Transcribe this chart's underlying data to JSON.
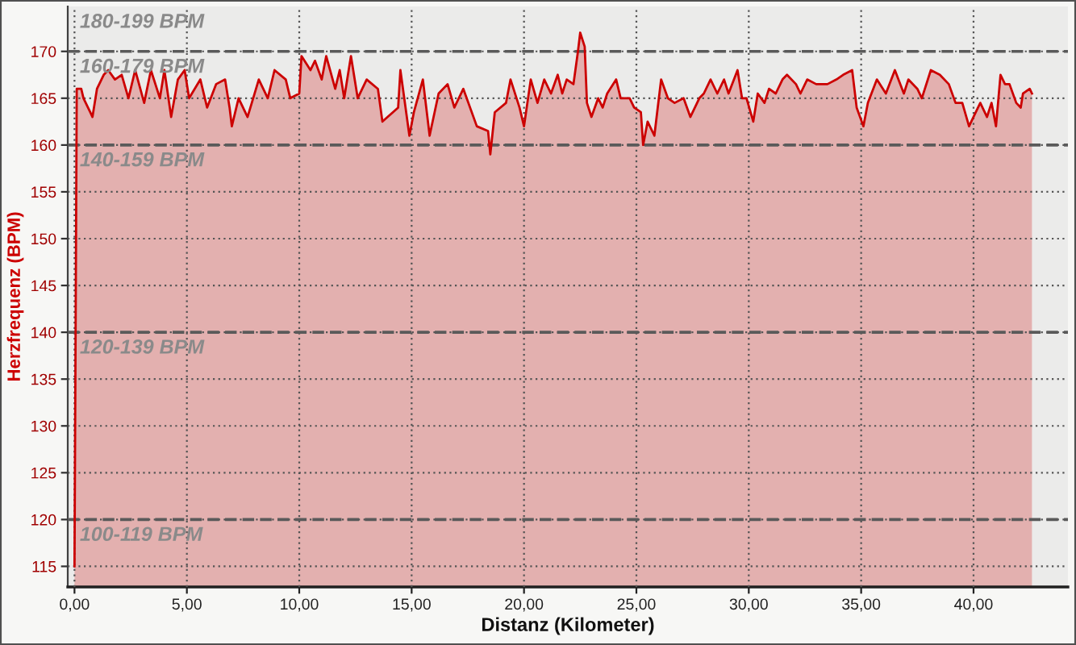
{
  "chart_data": {
    "type": "area",
    "xlabel": "Distanz (Kilometer)",
    "ylabel": "Herzfrequenz (BPM)",
    "x": [
      0.0,
      0.1,
      0.3,
      0.4,
      0.7,
      0.8,
      1.0,
      1.3,
      1.5,
      1.8,
      2.1,
      2.4,
      2.7,
      3.1,
      3.4,
      3.8,
      4.0,
      4.3,
      4.6,
      4.9,
      5.1,
      5.6,
      5.9,
      6.3,
      6.7,
      6.9,
      7.0,
      7.3,
      7.7,
      8.2,
      8.6,
      8.9,
      9.4,
      9.6,
      10.0,
      10.1,
      10.5,
      10.7,
      11.0,
      11.2,
      11.6,
      11.8,
      12.0,
      12.3,
      12.6,
      13.0,
      13.5,
      13.7,
      14.4,
      14.5,
      14.9,
      15.1,
      15.5,
      15.8,
      16.2,
      16.6,
      16.9,
      17.3,
      17.9,
      18.4,
      18.5,
      18.7,
      19.2,
      19.4,
      19.8,
      20.0,
      20.3,
      20.6,
      20.9,
      21.2,
      21.5,
      21.7,
      21.9,
      22.2,
      22.4,
      22.5,
      22.7,
      22.8,
      23.0,
      23.3,
      23.5,
      23.7,
      24.1,
      24.3,
      24.7,
      24.9,
      25.2,
      25.3,
      25.5,
      25.8,
      25.9,
      26.1,
      26.4,
      26.7,
      27.1,
      27.4,
      27.8,
      28.0,
      28.3,
      28.6,
      28.9,
      29.1,
      29.5,
      29.7,
      29.9,
      30.2,
      30.4,
      30.7,
      30.9,
      31.2,
      31.5,
      31.7,
      32.1,
      32.3,
      32.6,
      33.0,
      33.5,
      33.9,
      34.2,
      34.6,
      34.8,
      35.1,
      35.3,
      35.7,
      36.1,
      36.5,
      36.9,
      37.1,
      37.5,
      37.7,
      38.1,
      38.5,
      38.9,
      39.2,
      39.5,
      39.8,
      40.1,
      40.3,
      40.6,
      40.8,
      41.0,
      41.2,
      41.4,
      41.6,
      41.9,
      42.1,
      42.2,
      42.5,
      42.6
    ],
    "series": [
      {
        "color": "#cc0000",
        "values": [
          115,
          166,
          166,
          165,
          163.5,
          163,
          166,
          167.5,
          168,
          167,
          167.5,
          165,
          168,
          164.5,
          168,
          165,
          168,
          163,
          167,
          168,
          165,
          167,
          164,
          166.5,
          167,
          164,
          162,
          165,
          163,
          167,
          165,
          168,
          167,
          165,
          165.5,
          169.5,
          168,
          169,
          167,
          169.5,
          166,
          168,
          165,
          169.5,
          165,
          167,
          166,
          162.5,
          164,
          168,
          161,
          163.5,
          167,
          161,
          165.5,
          166.5,
          164,
          166,
          162,
          161.5,
          159,
          163.5,
          164.5,
          167,
          164,
          162,
          167,
          164.5,
          167,
          165.5,
          167.5,
          165.5,
          167,
          166.5,
          170,
          172,
          170.5,
          164.5,
          163,
          165,
          164,
          165.5,
          167,
          165,
          165,
          164,
          163.5,
          160,
          162.5,
          161,
          163,
          167,
          165,
          164.5,
          165,
          163,
          165,
          165.5,
          167,
          165.5,
          167,
          165.5,
          168,
          165,
          165,
          162.5,
          165.5,
          164.5,
          166,
          165.5,
          167,
          167.5,
          166.5,
          165.5,
          167,
          166.5,
          166.5,
          167,
          167.5,
          168,
          164,
          162,
          164.5,
          167,
          165.5,
          168,
          165.5,
          167,
          166,
          165,
          168,
          167.5,
          166.5,
          164.5,
          164.5,
          162,
          163.5,
          164.5,
          163,
          164.5,
          162,
          167.5,
          166.5,
          166.5,
          164.5,
          164,
          165.5,
          166,
          165.5
        ]
      }
    ],
    "xlim": [
      -0.3,
      44.2
    ],
    "ylim": [
      112.8,
      174.8
    ],
    "xticks": [
      {
        "value": 0,
        "label": "0,00"
      },
      {
        "value": 5,
        "label": "5,00"
      },
      {
        "value": 10,
        "label": "10,00"
      },
      {
        "value": 15,
        "label": "15,00"
      },
      {
        "value": 20,
        "label": "20,00"
      },
      {
        "value": 25,
        "label": "25,00"
      },
      {
        "value": 30,
        "label": "30,00"
      },
      {
        "value": 35,
        "label": "35,00"
      },
      {
        "value": 40,
        "label": "40,00"
      }
    ],
    "yticks": [
      115,
      120,
      125,
      130,
      135,
      140,
      145,
      150,
      155,
      160,
      165,
      170
    ],
    "grid": true,
    "bands": [
      {
        "axis": "y",
        "from": 170,
        "to": 174.8,
        "label": "180-199 BPM",
        "color": "#8c8c8c"
      },
      {
        "axis": "y",
        "from": 160,
        "to": 170,
        "label": "160-179 BPM",
        "color": "#8c8c8c"
      },
      {
        "axis": "y",
        "from": 140,
        "to": 160,
        "label": "140-159 BPM",
        "color": "#8c8c8c"
      },
      {
        "axis": "y",
        "from": 120,
        "to": 140,
        "label": "120-139 BPM",
        "color": "#8c8c8c"
      },
      {
        "axis": "y",
        "from": 112.8,
        "to": 120,
        "label": "100-119 BPM",
        "color": "#8c8c8c"
      }
    ]
  }
}
